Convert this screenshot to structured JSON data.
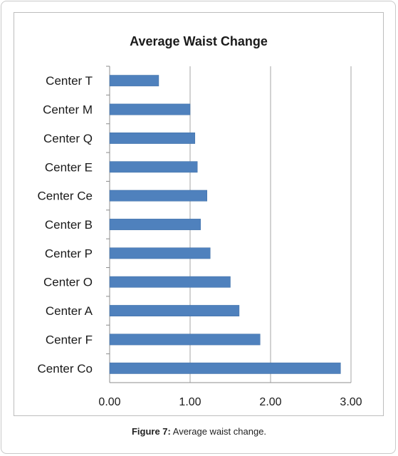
{
  "chart_data": {
    "type": "bar",
    "orientation": "horizontal",
    "title": "Average Waist Change",
    "categories": [
      "Center T",
      "Center M",
      "Center Q",
      "Center E",
      "Center Ce",
      "Center B",
      "Center P",
      "Center O",
      "Center A",
      "Center F",
      "Center Co"
    ],
    "values": [
      0.61,
      1.0,
      1.06,
      1.09,
      1.21,
      1.13,
      1.25,
      1.5,
      1.61,
      1.87,
      2.87
    ],
    "xlim": [
      0,
      3.0
    ],
    "xticks": [
      "0.00",
      "1.00",
      "2.00",
      "3.00"
    ],
    "grid": true,
    "bar_color": "#4f81bd"
  },
  "caption": {
    "label": "Figure 7:",
    "text": " Average waist change."
  }
}
